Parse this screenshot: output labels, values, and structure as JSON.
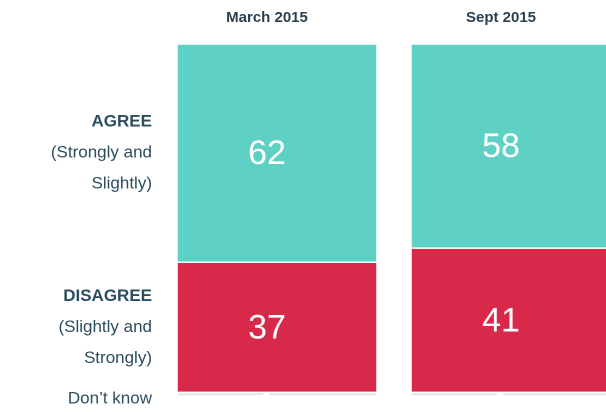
{
  "chart_data": {
    "type": "stacked_bar",
    "categories": [
      "March 2015",
      "Sept 2015"
    ],
    "ylim": [
      0,
      100
    ],
    "series": [
      {
        "name": "AGREE",
        "description": [
          "(Strongly and",
          "Slightly)"
        ],
        "color": "#5ed1c4",
        "values": [
          62,
          58
        ]
      },
      {
        "name": "DISAGREE",
        "description": [
          "(Slightly and",
          "Strongly)"
        ],
        "color": "#d8294b",
        "values": [
          37,
          41
        ]
      },
      {
        "name": "Don’t know",
        "color": "#e6e6e6",
        "values": [
          1,
          1
        ]
      }
    ]
  }
}
